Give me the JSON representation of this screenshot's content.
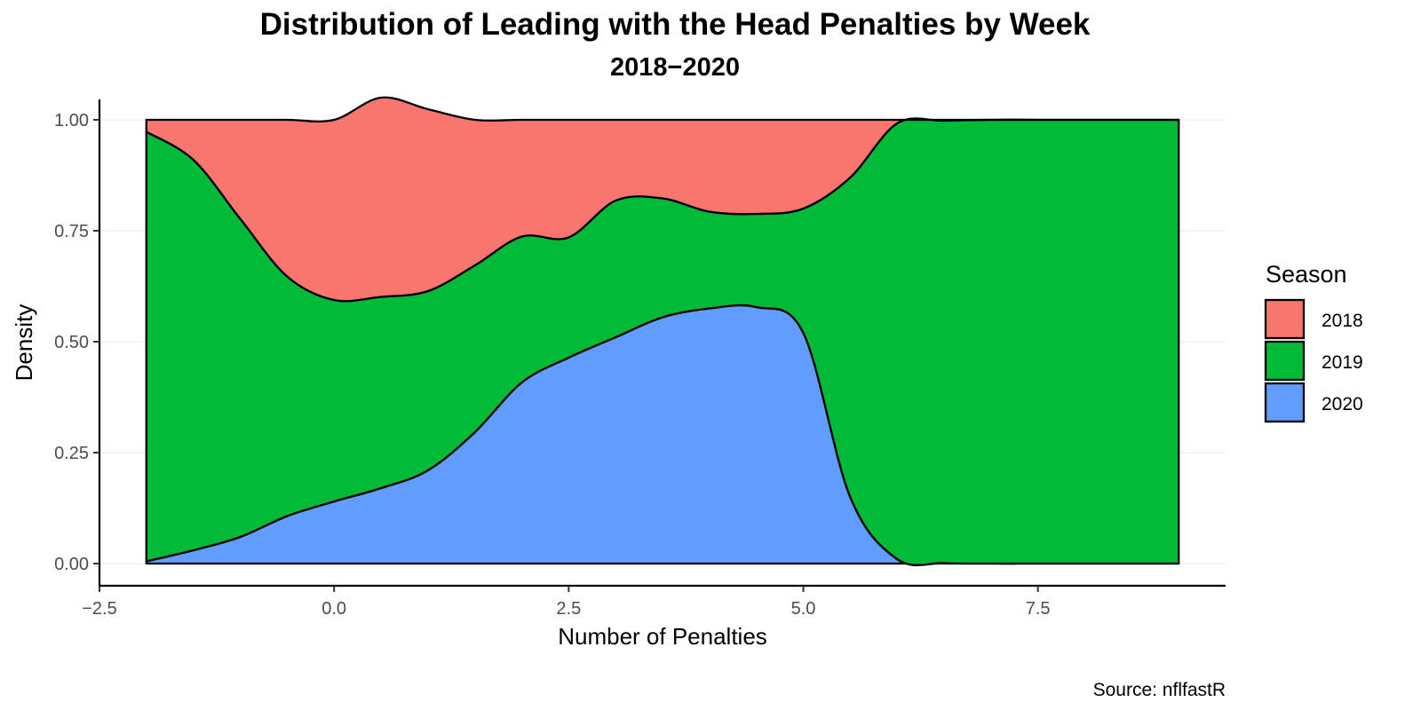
{
  "chart_data": {
    "type": "area",
    "subtype": "stacked-fill-density",
    "title": "Distribution of Leading with the Head Penalties by Week",
    "subtitle": "2018−2020",
    "xlabel": "Number of Penalties",
    "ylabel": "Density",
    "caption": "Source: nflfastR",
    "xlim": [
      -2.5,
      9.5
    ],
    "ylim": [
      0,
      1
    ],
    "x_ticks": [
      -2.5,
      0.0,
      2.5,
      5.0,
      7.5
    ],
    "x_tick_labels": [
      "−2.5",
      "0.0",
      "2.5",
      "5.0",
      "7.5"
    ],
    "y_ticks": [
      0,
      0.25,
      0.5,
      0.75,
      1.0
    ],
    "y_tick_labels": [
      "0.00",
      "0.25",
      "0.50",
      "0.75",
      "1.00"
    ],
    "grid": "horizontal-major",
    "legend": {
      "title": "Season",
      "position": "right"
    },
    "x": [
      -2,
      -1.5,
      -1,
      -0.5,
      0,
      0.5,
      1,
      1.5,
      2,
      2.5,
      3,
      3.5,
      4,
      4.5,
      5,
      5.5,
      6,
      6.5,
      7,
      7.5,
      8,
      8.5,
      9
    ],
    "series": [
      {
        "name": "2018",
        "color": "#F8766D",
        "values": [
          0.027,
          0.09,
          0.223,
          0.353,
          0.406,
          0.449,
          0.41,
          0.328,
          0.263,
          0.265,
          0.182,
          0.177,
          0.207,
          0.212,
          0.2,
          0.13,
          0.008,
          0.002,
          0,
          0,
          0,
          0,
          0
        ]
      },
      {
        "name": "2019",
        "color": "#00BA38",
        "values": [
          0.968,
          0.88,
          0.717,
          0.54,
          0.454,
          0.431,
          0.404,
          0.376,
          0.329,
          0.271,
          0.308,
          0.268,
          0.218,
          0.21,
          0.28,
          0.72,
          0.982,
          0.997,
          1.0,
          1.0,
          1.0,
          1.0,
          1.0
        ]
      },
      {
        "name": "2020",
        "color": "#619CFF",
        "values": [
          0.005,
          0.03,
          0.06,
          0.107,
          0.14,
          0.17,
          0.21,
          0.296,
          0.408,
          0.464,
          0.51,
          0.555,
          0.575,
          0.578,
          0.52,
          0.15,
          0.01,
          0.001,
          0,
          0,
          0,
          0,
          0
        ]
      }
    ]
  }
}
